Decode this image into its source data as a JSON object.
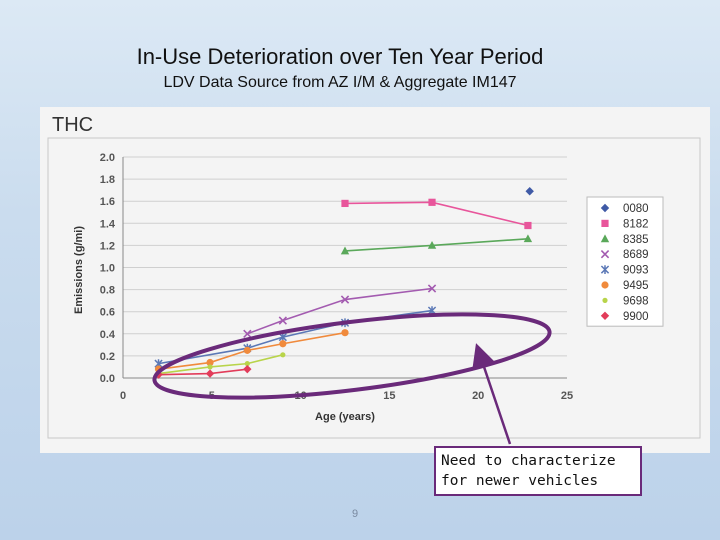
{
  "slide": {
    "title": "In-Use Deterioration over Ten Year Period",
    "subtitle": "LDV Data Source from AZ I/M & Aggregate IM147",
    "callout": "Need to characterize for newer vehicles",
    "page_number": "9",
    "colors": {
      "ellipse": "#6a2a7a",
      "arrow": "#6a2a7a"
    }
  },
  "chart_data": {
    "type": "scatter",
    "title": "THC",
    "xlabel": "Age (years)",
    "ylabel": "Emissions (g/mi)",
    "xlim": [
      0,
      25
    ],
    "ylim": [
      0,
      2.0
    ],
    "x_ticks": [
      "0",
      "5",
      "10",
      "15",
      "20",
      "25"
    ],
    "y_ticks": [
      "0.0",
      "0.2",
      "0.4",
      "0.6",
      "0.8",
      "1.0",
      "1.2",
      "1.4",
      "1.6",
      "1.8",
      "2.0"
    ],
    "grid": "horizontal",
    "legend_position": "right",
    "series": [
      {
        "name": "0080",
        "color": "#3f5aa6",
        "marker": "diamond",
        "x": [
          22.9
        ],
        "y": [
          1.69
        ]
      },
      {
        "name": "8182",
        "color": "#e8559b",
        "marker": "square",
        "x": [
          12.5,
          17.4,
          22.8
        ],
        "y": [
          1.58,
          1.59,
          1.38
        ]
      },
      {
        "name": "8385",
        "color": "#5aa85a",
        "marker": "triangle",
        "x": [
          12.5,
          17.4,
          22.8
        ],
        "y": [
          1.15,
          1.2,
          1.26
        ]
      },
      {
        "name": "8689",
        "color": "#a35bb0",
        "marker": "x",
        "x": [
          7.0,
          9.0,
          12.5,
          17.4
        ],
        "y": [
          0.4,
          0.52,
          0.71,
          0.81
        ]
      },
      {
        "name": "9093",
        "color": "#5b78b6",
        "marker": "star",
        "x": [
          2.0,
          7.0,
          9.0,
          12.5,
          17.4
        ],
        "y": [
          0.13,
          0.27,
          0.37,
          0.5,
          0.61
        ]
      },
      {
        "name": "9495",
        "color": "#f08a3c",
        "marker": "circle",
        "x": [
          2.0,
          4.9,
          7.0,
          9.0,
          12.5
        ],
        "y": [
          0.08,
          0.14,
          0.25,
          0.31,
          0.41
        ]
      },
      {
        "name": "9698",
        "color": "#b8d44a",
        "marker": "circle-small",
        "x": [
          2.0,
          4.9,
          7.0,
          9.0
        ],
        "y": [
          0.04,
          0.1,
          0.13,
          0.21
        ]
      },
      {
        "name": "9900",
        "color": "#e23c5a",
        "marker": "diamond",
        "x": [
          2.0,
          4.9,
          7.0
        ],
        "y": [
          0.03,
          0.04,
          0.08
        ]
      }
    ]
  }
}
